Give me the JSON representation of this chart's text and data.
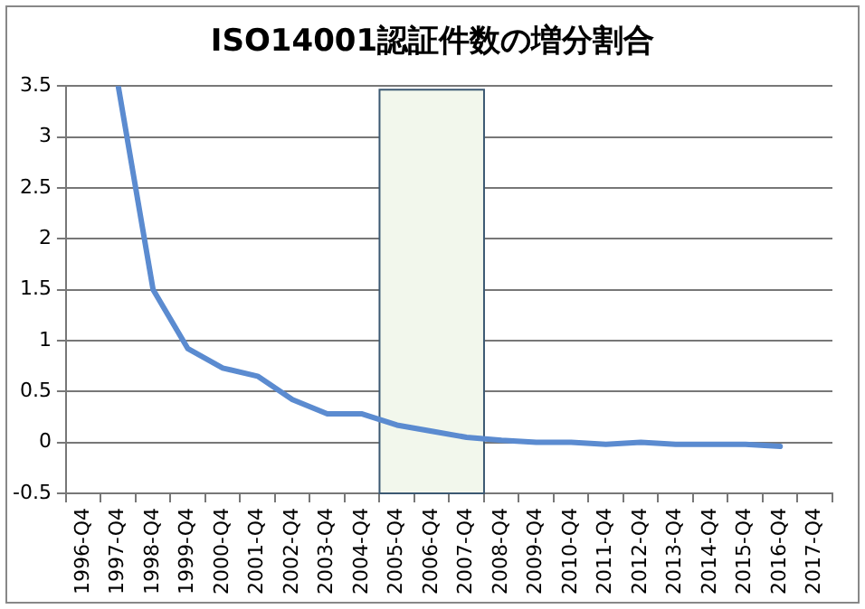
{
  "chart_data": {
    "type": "line",
    "title": "ISO14001認証件数の増分割合",
    "categories": [
      "1996-Q4",
      "1997-Q4",
      "1998-Q4",
      "1999-Q4",
      "2000-Q4",
      "2001-Q4",
      "2002-Q4",
      "2003-Q4",
      "2004-Q4",
      "2005-Q4",
      "2006-Q4",
      "2007-Q4",
      "2008-Q4",
      "2009-Q4",
      "2010-Q4",
      "2011-Q4",
      "2012-Q4",
      "2013-Q4",
      "2014-Q4",
      "2015-Q4",
      "2016-Q4",
      "2017-Q4"
    ],
    "series": [
      {
        "color": "#5b8bd0",
        "values": [
          null,
          3.5,
          1.5,
          0.92,
          0.73,
          0.65,
          0.42,
          0.28,
          0.28,
          0.17,
          0.11,
          0.05,
          0.02,
          0.0,
          0.0,
          -0.02,
          0.0,
          -0.02,
          -0.02,
          -0.02,
          -0.04,
          null
        ]
      }
    ],
    "ylim": [
      -0.5,
      3.5
    ],
    "yticks": [
      -0.5,
      0,
      0.5,
      1,
      1.5,
      2,
      2.5,
      3,
      3.5
    ],
    "bands": [
      {
        "axis": "x",
        "from": "2005-Q4",
        "to": "2007-Q4",
        "color": "#f2f7ec"
      }
    ],
    "grid": "y",
    "legend": false,
    "marker": "none",
    "line_style": "solid"
  }
}
